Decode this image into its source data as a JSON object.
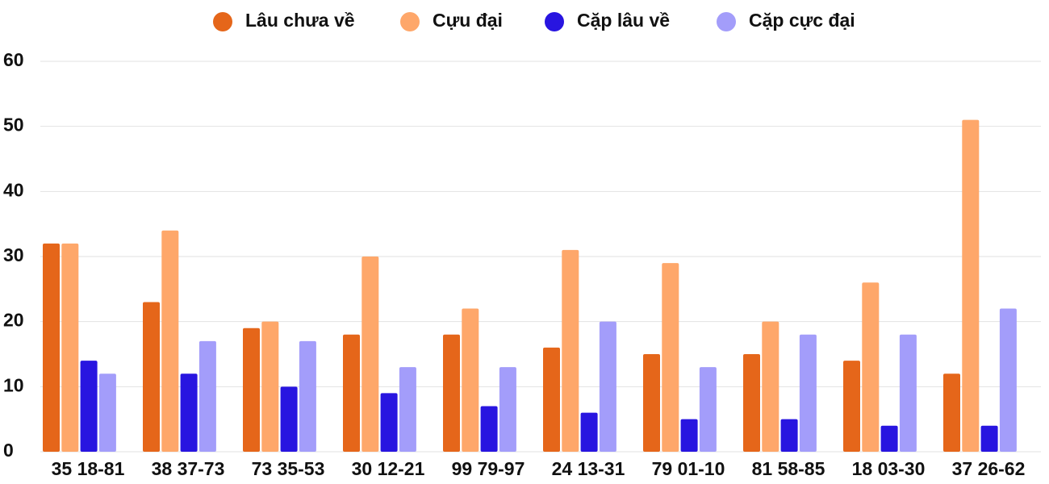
{
  "chart_data": {
    "type": "bar",
    "categories": [
      "35 18-81",
      "38 37-73",
      "73 35-53",
      "30 12-21",
      "99 79-97",
      "24 13-31",
      "79 01-10",
      "81 58-85",
      "18 03-30",
      "37 26-62"
    ],
    "series": [
      {
        "name": "Lâu chưa về",
        "color": "#e5661a",
        "values": [
          32,
          23,
          19,
          18,
          18,
          16,
          15,
          15,
          14,
          12
        ]
      },
      {
        "name": "Cựu đại",
        "color": "#fea76a",
        "values": [
          32,
          34,
          20,
          30,
          22,
          31,
          29,
          20,
          26,
          51
        ]
      },
      {
        "name": "Cặp lâu về",
        "color": "#2815e0",
        "values": [
          14,
          12,
          10,
          9,
          7,
          6,
          5,
          5,
          4,
          4
        ]
      },
      {
        "name": "Cặp cực đại",
        "color": "#a39dfa",
        "values": [
          12,
          17,
          17,
          13,
          13,
          20,
          13,
          18,
          18,
          22
        ]
      }
    ],
    "ylim": [
      0,
      60
    ],
    "yticks": [
      0,
      10,
      20,
      30,
      40,
      50,
      60
    ],
    "grid": true,
    "legend": "top"
  }
}
